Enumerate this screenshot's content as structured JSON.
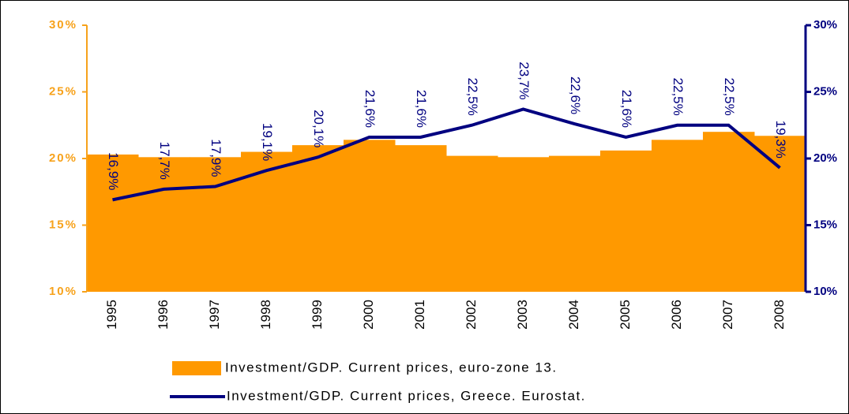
{
  "chart_data": {
    "type": "bar-line",
    "categories": [
      "1995",
      "1996",
      "1997",
      "1998",
      "1999",
      "2000",
      "2001",
      "2002",
      "2003",
      "2004",
      "2005",
      "2006",
      "2007",
      "2008"
    ],
    "series": [
      {
        "name": "Investment/GDP. Current prices, euro-zone 13.",
        "type": "bar",
        "color": "#ff9900",
        "values": [
          20.3,
          20.1,
          20.1,
          20.5,
          21.0,
          21.4,
          21.0,
          20.2,
          20.1,
          20.2,
          20.6,
          21.4,
          22.0,
          21.7
        ]
      },
      {
        "name": "Investment/GDP. Current prices, Greece. Eurostat.",
        "type": "line",
        "axis": "y2",
        "color": "#000080",
        "values": [
          16.9,
          17.7,
          17.9,
          19.1,
          20.1,
          21.6,
          21.6,
          22.5,
          23.7,
          22.6,
          21.6,
          22.5,
          22.5,
          19.3
        ],
        "value_labels": [
          "16,9%",
          "17,7%",
          "17,9%",
          "19,1%",
          "20,1%",
          "21,6%",
          "21,6%",
          "22,5%",
          "23,7%",
          "22,6%",
          "21,6%",
          "22,5%",
          "22,5%",
          "19,3%"
        ]
      }
    ],
    "ylim": [
      10,
      30
    ],
    "yticks": [
      {
        "value": 10,
        "label": "10%"
      },
      {
        "value": 15,
        "label": "15%"
      },
      {
        "value": 20,
        "label": "20%"
      },
      {
        "value": 25,
        "label": "25%"
      },
      {
        "value": 30,
        "label": "30%"
      }
    ],
    "y2lim": [
      10,
      30
    ],
    "y2ticks": [
      {
        "value": 10,
        "label": "10%"
      },
      {
        "value": 15,
        "label": "15%"
      },
      {
        "value": 20,
        "label": "20%"
      },
      {
        "value": 25,
        "label": "25%"
      },
      {
        "value": 30,
        "label": "30%"
      }
    ],
    "left_axis_color": "#f7a21b",
    "right_axis_color": "#000080"
  }
}
